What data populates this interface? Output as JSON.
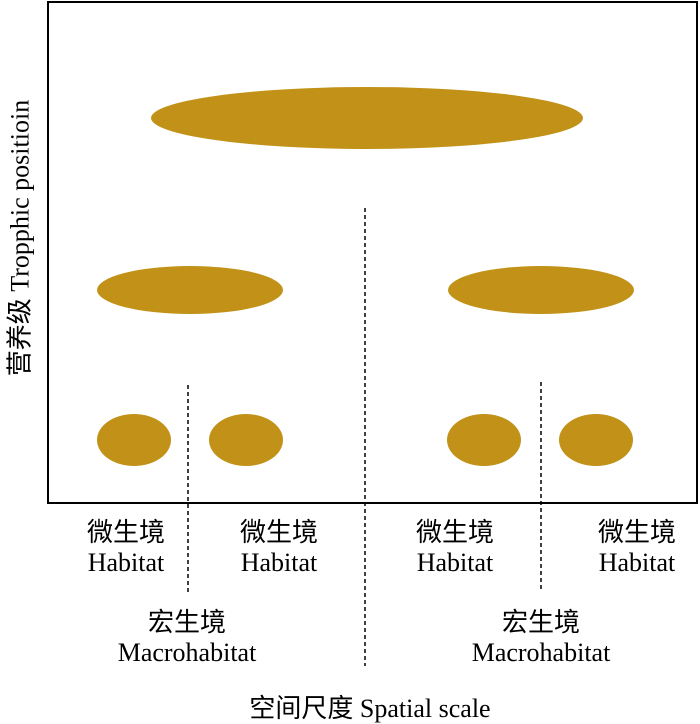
{
  "diagram": {
    "y_axis_label": "营养级 Tropphic positioin",
    "x_axis_label": "空间尺度 Spatial scale",
    "fill_color": "#C19217",
    "habitat_labels": [
      {
        "cn": "微生境",
        "en": "Habitat"
      },
      {
        "cn": "微生境",
        "en": "Habitat"
      },
      {
        "cn": "微生境",
        "en": "Habitat"
      },
      {
        "cn": "微生境",
        "en": "Habitat"
      }
    ],
    "macrohabitat_labels": [
      {
        "cn": "宏生境",
        "en": "Macrohabitat"
      },
      {
        "cn": "宏生境",
        "en": "Macrohabitat"
      }
    ]
  }
}
